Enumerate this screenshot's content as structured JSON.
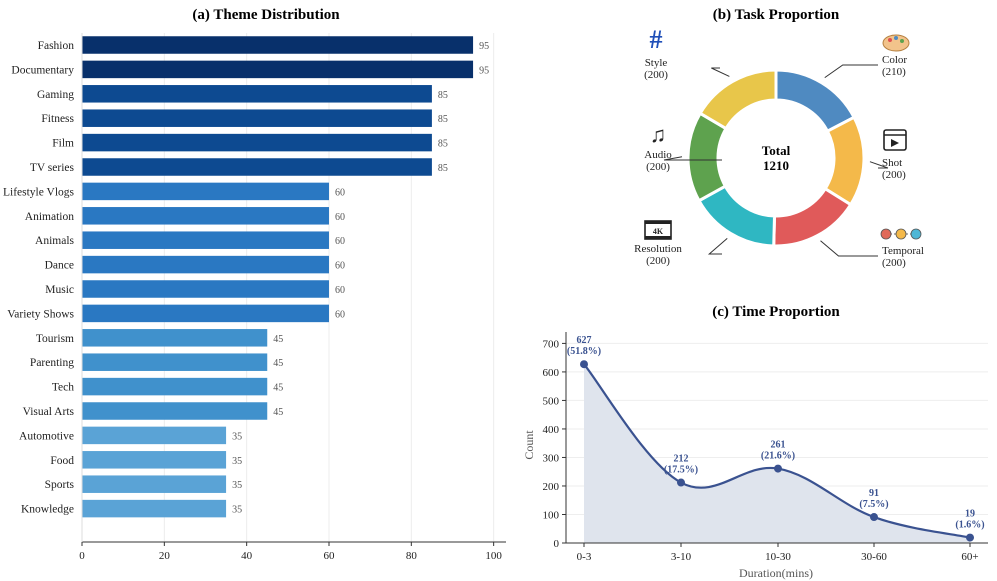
{
  "chart_data": [
    {
      "type": "bar",
      "orientation": "horizontal",
      "title": "(a) Theme Distribution",
      "xlabel": "",
      "ylabel": "",
      "xlim": [
        0,
        103
      ],
      "xticks": [
        0,
        20,
        40,
        60,
        80,
        100
      ],
      "grid": true,
      "categories": [
        "Fashion",
        "Documentary",
        "Gaming",
        "Fitness",
        "Film",
        "TV series",
        "Lifestyle Vlogs",
        "Animation",
        "Animals",
        "Dance",
        "Music",
        "Variety Shows",
        "Tourism",
        "Parenting",
        "Tech",
        "Visual Arts",
        "Automotive",
        "Food",
        "Sports",
        "Knowledge"
      ],
      "values": [
        95,
        95,
        85,
        85,
        85,
        85,
        60,
        60,
        60,
        60,
        60,
        60,
        45,
        45,
        45,
        45,
        35,
        35,
        35,
        35
      ],
      "colors": [
        "#08306b",
        "#08306b",
        "#0d4a91",
        "#0d4a91",
        "#0d4a91",
        "#0d4a91",
        "#2a78c2",
        "#2a78c2",
        "#2a78c2",
        "#2a78c2",
        "#2a78c2",
        "#2a78c2",
        "#4091cc",
        "#4091cc",
        "#4091cc",
        "#4091cc",
        "#5aa3d6",
        "#5aa3d6",
        "#5aa3d6",
        "#5aa3d6"
      ]
    },
    {
      "type": "pie",
      "variant": "donut",
      "title": "(b) Task Proportion",
      "center_label": "Total",
      "center_value": "1210",
      "slices": [
        {
          "label": "Color",
          "value": 210,
          "count_label": "(210)",
          "color": "#4f8ac1",
          "icon": "palette-icon"
        },
        {
          "label": "Shot",
          "value": 200,
          "count_label": "(200)",
          "color": "#f4b94a",
          "icon": "video-play-icon"
        },
        {
          "label": "Temporal",
          "value": 200,
          "count_label": "(200)",
          "color": "#e05a5a",
          "icon": "timeline-dots-icon"
        },
        {
          "label": "Resolution",
          "value": 200,
          "count_label": "(200)",
          "color": "#2fb7c2",
          "icon": "4k-film-icon",
          "icon_text": "4K"
        },
        {
          "label": "Audio",
          "value": 200,
          "count_label": "(200)",
          "color": "#5ea24e",
          "icon": "music-notes-icon",
          "icon_text": "♫"
        },
        {
          "label": "Style",
          "value": 200,
          "count_label": "(200)",
          "color": "#e8c64a",
          "icon": "hashtag-icon",
          "icon_text": "#"
        }
      ]
    },
    {
      "type": "area",
      "title": "(c) Time Proportion",
      "xlabel": "Duration(mins)",
      "ylabel": "Count",
      "categories": [
        "0-3",
        "3-10",
        "10-30",
        "30-60",
        "60+"
      ],
      "values": [
        627,
        212,
        261,
        91,
        19
      ],
      "point_labels": [
        "627",
        "212",
        "261",
        "91",
        "19"
      ],
      "percent_labels": [
        "(51.8%)",
        "(17.5%)",
        "(21.6%)",
        "(7.5%)",
        "(1.6%)"
      ],
      "ylim": [
        0,
        740
      ],
      "yticks": [
        0,
        100,
        200,
        300,
        400,
        500,
        600,
        700
      ],
      "grid": true,
      "line_color": "#3a5290",
      "fill_color": "#dfe4ed"
    }
  ]
}
